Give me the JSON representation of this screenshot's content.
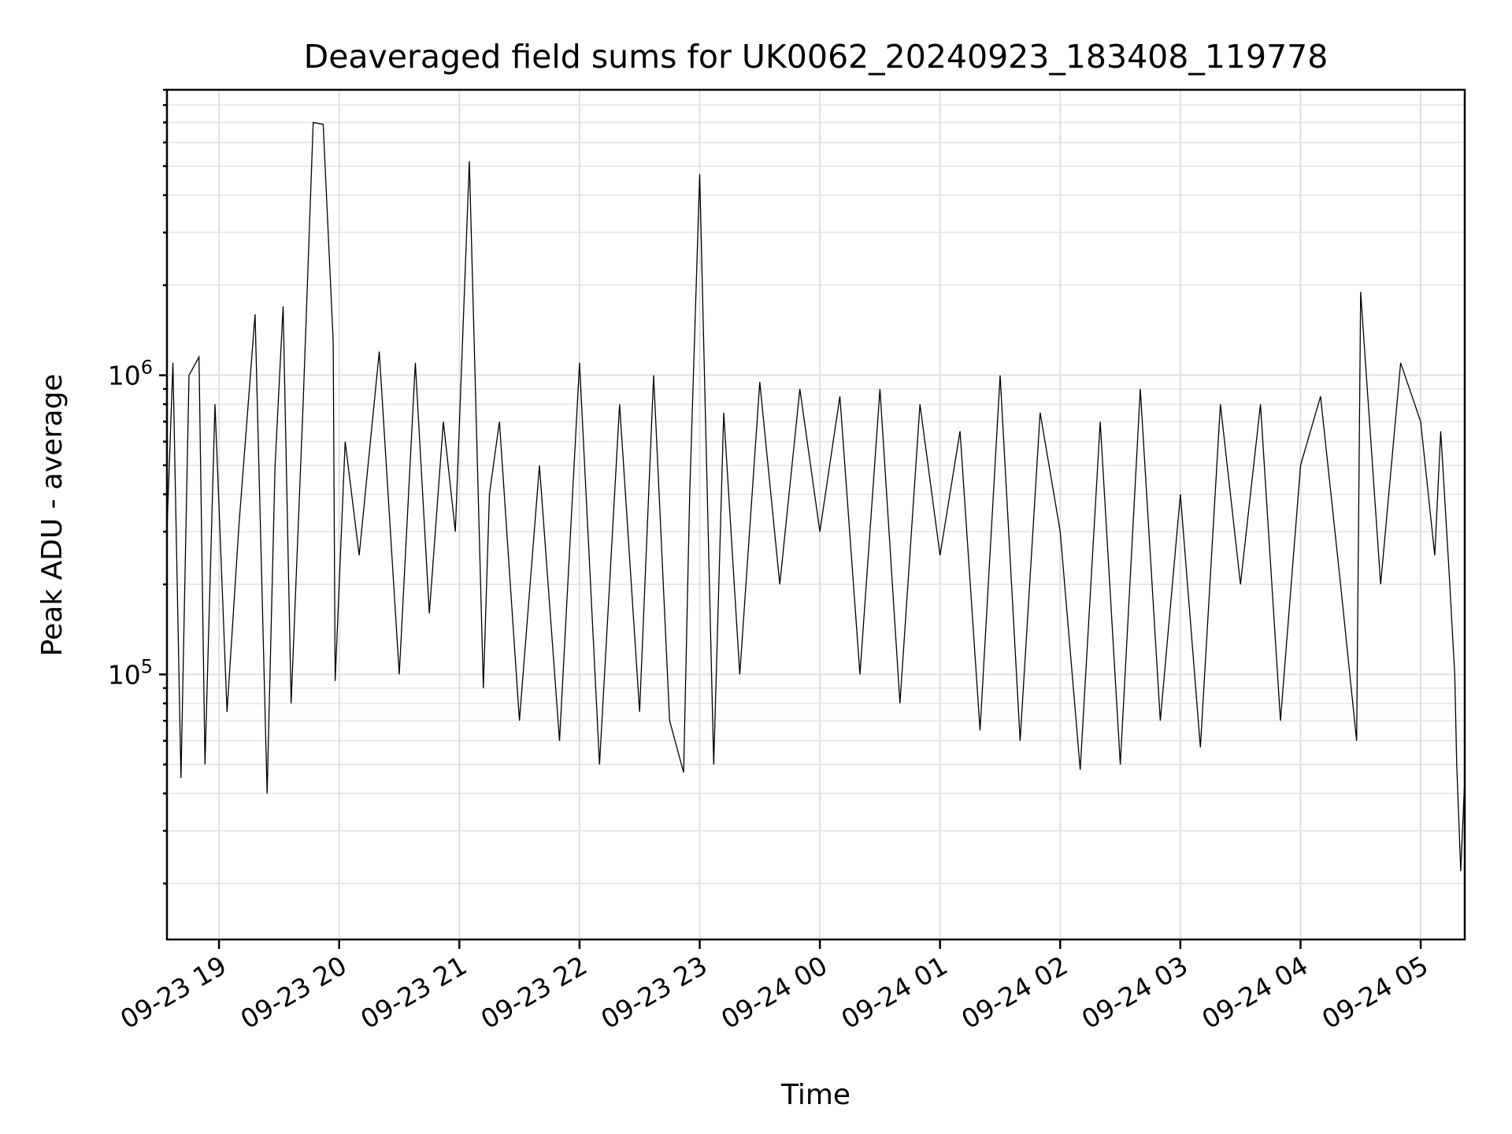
{
  "chart_data": {
    "type": "line",
    "title": "Deaveraged field sums for UK0062_20240923_183408_119778",
    "xlabel": "Time",
    "ylabel": "Peak ADU - average",
    "yscale": "log",
    "ylim": [
      13000,
      9000000
    ],
    "xlim": [
      "2024-09-23 18:34",
      "2024-09-24 05:22"
    ],
    "x_ticks": [
      {
        "t": "2024-09-23 19:00",
        "label": "09-23 19"
      },
      {
        "t": "2024-09-23 20:00",
        "label": "09-23 20"
      },
      {
        "t": "2024-09-23 21:00",
        "label": "09-23 21"
      },
      {
        "t": "2024-09-23 22:00",
        "label": "09-23 22"
      },
      {
        "t": "2024-09-23 23:00",
        "label": "09-23 23"
      },
      {
        "t": "2024-09-24 00:00",
        "label": "09-24 00"
      },
      {
        "t": "2024-09-24 01:00",
        "label": "09-24 01"
      },
      {
        "t": "2024-09-24 02:00",
        "label": "09-24 02"
      },
      {
        "t": "2024-09-24 03:00",
        "label": "09-24 03"
      },
      {
        "t": "2024-09-24 04:00",
        "label": "09-24 04"
      },
      {
        "t": "2024-09-24 05:00",
        "label": "09-24 05"
      }
    ],
    "y_ticks": [
      {
        "value": 100000,
        "base": "10",
        "exp": "5"
      },
      {
        "value": 1000000,
        "base": "10",
        "exp": "6"
      }
    ],
    "grid": "major and minor",
    "color": "#000000",
    "series": [
      {
        "x": [
          "2024-09-23 18:34",
          "2024-09-23 18:37",
          "2024-09-23 18:41",
          "2024-09-23 18:45",
          "2024-09-23 18:50",
          "2024-09-23 18:53",
          "2024-09-23 18:58",
          "2024-09-23 19:04",
          "2024-09-23 19:10",
          "2024-09-23 19:18",
          "2024-09-23 19:24",
          "2024-09-23 19:28",
          "2024-09-23 19:32",
          "2024-09-23 19:36",
          "2024-09-23 19:42",
          "2024-09-23 19:47",
          "2024-09-23 19:52",
          "2024-09-23 19:57",
          "2024-09-23 19:58",
          "2024-09-23 20:03",
          "2024-09-23 20:10",
          "2024-09-23 20:20",
          "2024-09-23 20:30",
          "2024-09-23 20:38",
          "2024-09-23 20:45",
          "2024-09-23 20:52",
          "2024-09-23 20:58",
          "2024-09-23 21:05",
          "2024-09-23 21:12",
          "2024-09-23 21:15",
          "2024-09-23 21:20",
          "2024-09-23 21:30",
          "2024-09-23 21:40",
          "2024-09-23 21:50",
          "2024-09-23 22:00",
          "2024-09-23 22:10",
          "2024-09-23 22:20",
          "2024-09-23 22:30",
          "2024-09-23 22:37",
          "2024-09-23 22:45",
          "2024-09-23 22:52",
          "2024-09-23 22:55",
          "2024-09-23 23:00",
          "2024-09-23 23:07",
          "2024-09-23 23:12",
          "2024-09-23 23:20",
          "2024-09-23 23:30",
          "2024-09-23 23:40",
          "2024-09-23 23:50",
          "2024-09-24 00:00",
          "2024-09-24 00:10",
          "2024-09-24 00:20",
          "2024-09-24 00:30",
          "2024-09-24 00:40",
          "2024-09-24 00:50",
          "2024-09-24 01:00",
          "2024-09-24 01:10",
          "2024-09-24 01:20",
          "2024-09-24 01:30",
          "2024-09-24 01:40",
          "2024-09-24 01:50",
          "2024-09-24 02:00",
          "2024-09-24 02:10",
          "2024-09-24 02:20",
          "2024-09-24 02:30",
          "2024-09-24 02:40",
          "2024-09-24 02:50",
          "2024-09-24 03:00",
          "2024-09-24 03:10",
          "2024-09-24 03:20",
          "2024-09-24 03:30",
          "2024-09-24 03:40",
          "2024-09-24 03:50",
          "2024-09-24 04:00",
          "2024-09-24 04:10",
          "2024-09-24 04:20",
          "2024-09-24 04:28",
          "2024-09-24 04:30",
          "2024-09-24 04:40",
          "2024-09-24 04:50",
          "2024-09-24 05:00",
          "2024-09-24 05:07",
          "2024-09-24 05:10",
          "2024-09-24 05:14",
          "2024-09-24 05:17",
          "2024-09-24 05:18",
          "2024-09-24 05:20",
          "2024-09-24 05:22"
        ],
        "y": [
          300000,
          1100000,
          45000,
          1000000,
          1150000,
          50000,
          800000,
          75000,
          320000,
          1600000,
          40000,
          500000,
          1700000,
          80000,
          800000,
          7000000,
          6900000,
          1300000,
          95000,
          600000,
          250000,
          1200000,
          100000,
          1100000,
          160000,
          700000,
          300000,
          5200000,
          90000,
          400000,
          700000,
          70000,
          500000,
          60000,
          1100000,
          50000,
          800000,
          75000,
          1000000,
          70000,
          47000,
          400000,
          4700000,
          50000,
          750000,
          100000,
          950000,
          200000,
          900000,
          300000,
          850000,
          100000,
          900000,
          80000,
          800000,
          250000,
          650000,
          65000,
          1000000,
          60000,
          750000,
          300000,
          48000,
          700000,
          50000,
          900000,
          70000,
          400000,
          57000,
          800000,
          200000,
          800000,
          70000,
          500000,
          850000,
          200000,
          60000,
          1900000,
          200000,
          1100000,
          700000,
          250000,
          650000,
          230000,
          100000,
          50000,
          22000,
          45000
        ]
      }
    ]
  }
}
